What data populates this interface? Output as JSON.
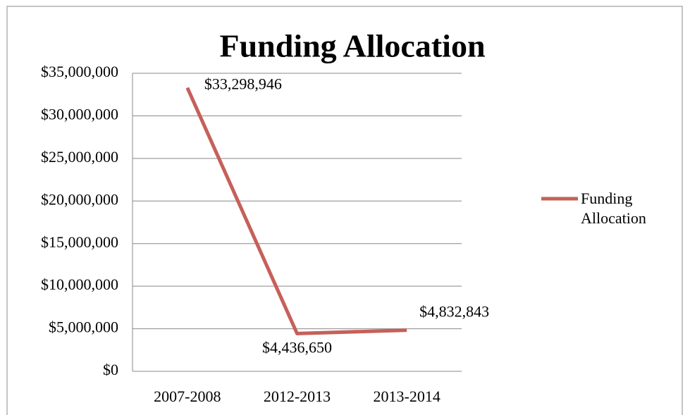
{
  "chart_data": {
    "type": "line",
    "title": "Funding Allocation",
    "categories": [
      "2007-2008",
      "2012-2013",
      "2013-2014"
    ],
    "series": [
      {
        "name": "Funding Allocation",
        "color": "#c6605a",
        "values": [
          33298946,
          4436650,
          4832843
        ],
        "value_labels": [
          "$33,298,946",
          "$4,436,650",
          "$4,832,843"
        ]
      }
    ],
    "ylim": [
      0,
      35000000
    ],
    "yticks": [
      {
        "value": 0,
        "label": "$0"
      },
      {
        "value": 5000000,
        "label": "$5,000,000"
      },
      {
        "value": 10000000,
        "label": "$10,000,000"
      },
      {
        "value": 15000000,
        "label": "$15,000,000"
      },
      {
        "value": 20000000,
        "label": "$20,000,000"
      },
      {
        "value": 25000000,
        "label": "$25,000,000"
      },
      {
        "value": 30000000,
        "label": "$30,000,000"
      },
      {
        "value": 35000000,
        "label": "$35,000,000"
      }
    ],
    "grid": true,
    "legend": "right"
  }
}
